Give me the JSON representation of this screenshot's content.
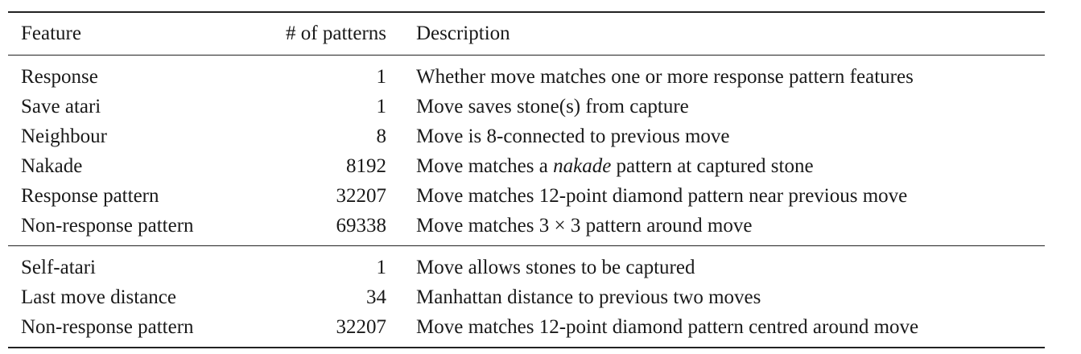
{
  "table": {
    "headers": {
      "feature": "Feature",
      "count": "# of patterns",
      "description": "Description"
    },
    "group1": [
      {
        "feature": "Response",
        "count": "1",
        "description": "Whether move matches one or more response pattern features"
      },
      {
        "feature": "Save atari",
        "count": "1",
        "description": "Move saves stone(s) from capture"
      },
      {
        "feature": "Neighbour",
        "count": "8",
        "description": "Move is 8-connected to previous move"
      },
      {
        "feature": "Nakade",
        "count": "8192",
        "desc_before": "Move matches a ",
        "desc_em": "nakade",
        "desc_after": " pattern at captured stone"
      },
      {
        "feature": "Response pattern",
        "count": "32207",
        "description": "Move matches 12-point diamond pattern near previous move"
      },
      {
        "feature": "Non-response pattern",
        "count": "69338",
        "description": "Move matches 3 × 3 pattern around move"
      }
    ],
    "group2": [
      {
        "feature": "Self-atari",
        "count": "1",
        "description": "Move allows stones to be captured"
      },
      {
        "feature": "Last move distance",
        "count": "34",
        "description": "Manhattan distance to previous two moves"
      },
      {
        "feature": "Non-response pattern",
        "count": "32207",
        "description": "Move matches 12-point diamond pattern centred around move"
      }
    ]
  }
}
